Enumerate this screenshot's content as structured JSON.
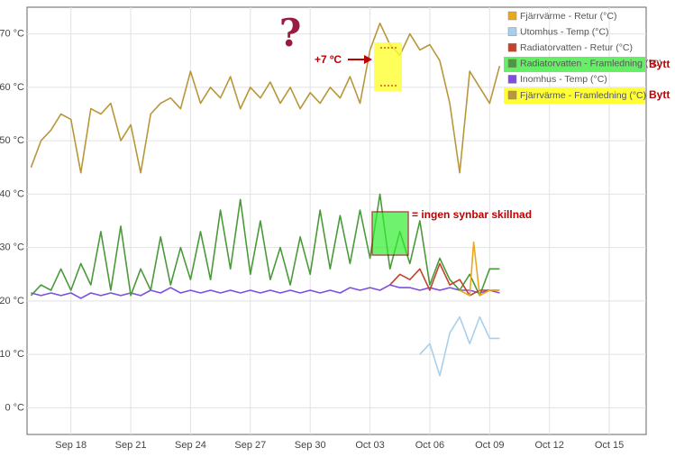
{
  "chart_data": {
    "type": "line",
    "xlim": [
      15.8,
      46.85
    ],
    "ylim": [
      -5,
      75
    ],
    "xticks": [
      {
        "value": 18,
        "label": "Sep 18"
      },
      {
        "value": 21,
        "label": "Sep 21"
      },
      {
        "value": 24,
        "label": "Sep 24"
      },
      {
        "value": 27,
        "label": "Sep 27"
      },
      {
        "value": 30,
        "label": "Sep 30"
      },
      {
        "value": 33,
        "label": "Oct 03"
      },
      {
        "value": 36,
        "label": "Oct 06"
      },
      {
        "value": 39,
        "label": "Oct 09"
      },
      {
        "value": 42,
        "label": "Oct 12"
      },
      {
        "value": 45,
        "label": "Oct 15"
      }
    ],
    "yticks": [
      {
        "value": 0,
        "label": "0 °C"
      },
      {
        "value": 10,
        "label": "10 °C"
      },
      {
        "value": 20,
        "label": "20 °C"
      },
      {
        "value": 30,
        "label": "30 °C"
      },
      {
        "value": 40,
        "label": "40 °C"
      },
      {
        "value": 50,
        "label": "50 °C"
      },
      {
        "value": 60,
        "label": "60 °C"
      },
      {
        "value": 70,
        "label": "70 °C"
      }
    ],
    "grid": true,
    "series": [
      {
        "name": "Fjärrvärme - Retur (°C)",
        "color": "#e8a920",
        "x": [
          37.5,
          38,
          38.2,
          38.5,
          39,
          39.5
        ],
        "values": [
          22,
          21,
          31,
          21,
          22,
          22
        ]
      },
      {
        "name": "Utomhus - Temp (°C)",
        "color": "#a9d0ea",
        "x": [
          35.5,
          36,
          36.5,
          37,
          37.5,
          38,
          38.5,
          39,
          39.5
        ],
        "values": [
          10,
          12,
          6,
          14,
          17,
          12,
          17,
          13,
          13
        ]
      },
      {
        "name": "Radiatorvatten - Retur (°C)",
        "color": "#c0442e",
        "x": [
          34,
          34.5,
          35,
          35.5,
          36,
          36.5,
          37,
          37.5,
          38,
          38.5,
          39,
          39.5
        ],
        "values": [
          23,
          25,
          24,
          26,
          22,
          27,
          23,
          24,
          21,
          22,
          22,
          22
        ]
      },
      {
        "name": "Radiatorvatten - Framledning (°C)",
        "color": "#4a9a3a",
        "x": [
          16,
          16.5,
          17,
          17.5,
          18,
          18.5,
          19,
          19.5,
          20,
          20.5,
          21,
          21.5,
          22,
          22.5,
          23,
          23.5,
          24,
          24.5,
          25,
          25.5,
          26,
          26.5,
          27,
          27.5,
          28,
          28.5,
          29,
          29.5,
          30,
          30.5,
          31,
          31.5,
          32,
          32.5,
          33,
          33.5,
          34,
          34.5,
          35,
          35.5,
          36,
          36.5,
          37,
          37.5,
          38,
          38.5,
          39,
          39.5
        ],
        "values": [
          21,
          23,
          22,
          26,
          22,
          27,
          23,
          33,
          22,
          34,
          21,
          26,
          22,
          32,
          23,
          30,
          24,
          33,
          24,
          37,
          26,
          39,
          25,
          35,
          24,
          30,
          23,
          32,
          25,
          37,
          26,
          36,
          27,
          37,
          28,
          40,
          26,
          33,
          27,
          35,
          23,
          28,
          24,
          22,
          25,
          21,
          26,
          26
        ]
      },
      {
        "name": "Inomhus - Temp (°C)",
        "color": "#7e4ee0",
        "x": [
          16,
          16.5,
          17,
          17.5,
          18,
          18.5,
          19,
          19.5,
          20,
          20.5,
          21,
          21.5,
          22,
          22.5,
          23,
          23.5,
          24,
          24.5,
          25,
          25.5,
          26,
          26.5,
          27,
          27.5,
          28,
          28.5,
          29,
          29.5,
          30,
          30.5,
          31,
          31.5,
          32,
          32.5,
          33,
          33.5,
          34,
          34.5,
          35,
          35.5,
          36,
          36.5,
          37,
          37.5,
          38,
          38.5,
          39,
          39.5
        ],
        "values": [
          21.5,
          21,
          21.5,
          21,
          21.5,
          20.5,
          21.5,
          21,
          21.5,
          21,
          21.5,
          21,
          22,
          21.5,
          22.5,
          21.5,
          22,
          21.5,
          22,
          21.5,
          22,
          21.5,
          22,
          21.5,
          22,
          21.5,
          22,
          21.5,
          22,
          21.5,
          22,
          21.5,
          22.5,
          22,
          22.5,
          22,
          23,
          22.5,
          22.5,
          22,
          22.5,
          22,
          22.5,
          22,
          22,
          21.5,
          22,
          21.5
        ]
      },
      {
        "name": "Fjärrvärme - Framledning (°C)",
        "color": "#b8963a",
        "x": [
          16,
          16.5,
          17,
          17.5,
          18,
          18.5,
          19,
          19.5,
          20,
          20.5,
          21,
          21.5,
          22,
          22.5,
          23,
          23.5,
          24,
          24.5,
          25,
          25.5,
          26,
          26.5,
          27,
          27.5,
          28,
          28.5,
          29,
          29.5,
          30,
          30.5,
          31,
          31.5,
          32,
          32.5,
          33,
          33.5,
          34,
          34.5,
          35,
          35.5,
          36,
          36.5,
          37,
          37.5,
          38,
          38.5,
          39,
          39.5
        ],
        "values": [
          45,
          50,
          52,
          55,
          54,
          44,
          56,
          55,
          57,
          50,
          53,
          44,
          55,
          57,
          58,
          56,
          63,
          57,
          60,
          58,
          62,
          56,
          60,
          58,
          61,
          57,
          60,
          56,
          59,
          57,
          60,
          58,
          62,
          57,
          67,
          72,
          68,
          66,
          70,
          67,
          68,
          65,
          57,
          44,
          63,
          60,
          57,
          64
        ]
      }
    ]
  },
  "annotations": [
    "?",
    "+7 ºC",
    "= ingen synbar skillnad",
    "Bytt",
    "Bytt"
  ]
}
